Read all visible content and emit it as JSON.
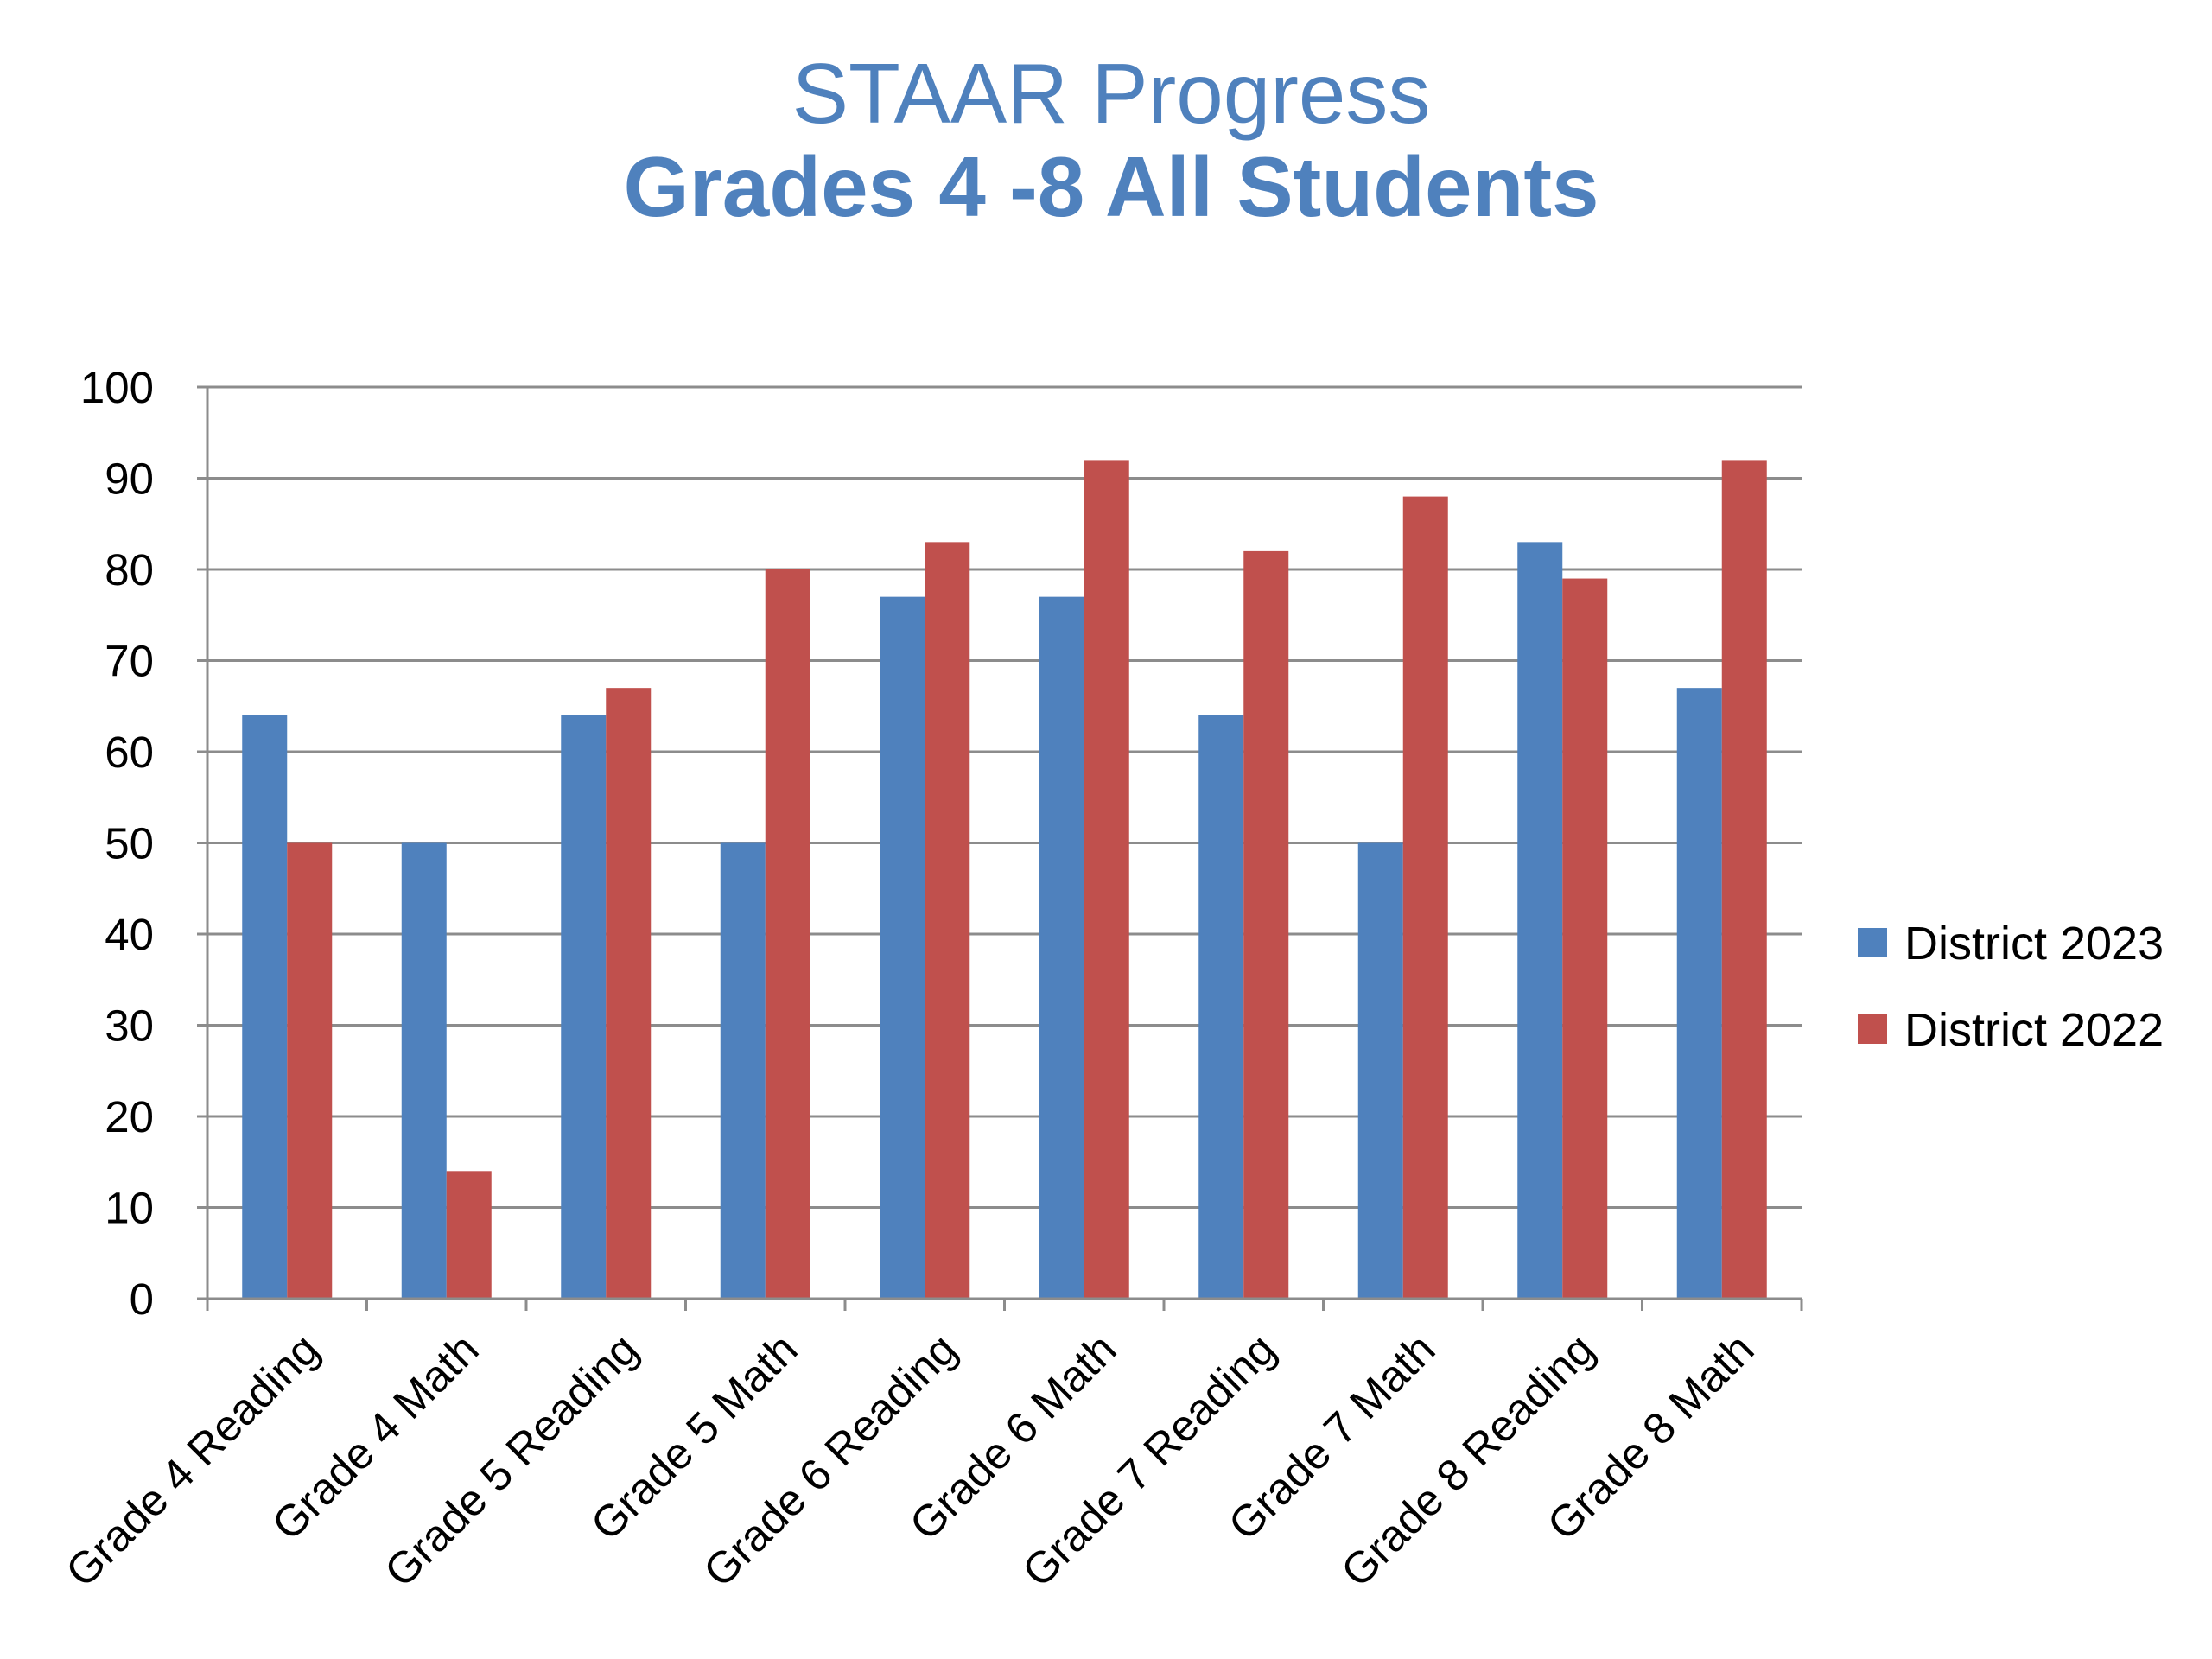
{
  "chart_data": {
    "type": "bar",
    "title": "STAAR Progress",
    "subtitle": "Grades 4 -8 All Students",
    "xlabel": "",
    "ylabel": "",
    "categories": [
      "Grade 4 Reading",
      "Grade 4 Math",
      "Grade 5 Reading",
      "Grade 5 Math",
      "Grade 6 Reading",
      "Grade 6 Math",
      "Grade 7 Reading",
      "Grade 7 Math",
      "Grade 8 Reading",
      "Grade 8 Math"
    ],
    "series": [
      {
        "name": "District 2023",
        "color": "#4F81BD",
        "values": [
          64,
          50,
          64,
          50,
          77,
          77,
          64,
          50,
          83,
          67
        ]
      },
      {
        "name": "District 2022",
        "color": "#C0504D",
        "values": [
          50,
          14,
          67,
          80,
          83,
          92,
          82,
          88,
          79,
          92
        ]
      }
    ],
    "ylim": [
      0,
      100
    ],
    "yticks": [
      "0",
      "10",
      "20",
      "30",
      "40",
      "50",
      "60",
      "70",
      "80",
      "90",
      "100"
    ],
    "grid": true,
    "legend_position": "right",
    "title_color": "#4F81BD",
    "grid_color": "#8c8c8c",
    "axis_color": "#8c8c8c"
  }
}
